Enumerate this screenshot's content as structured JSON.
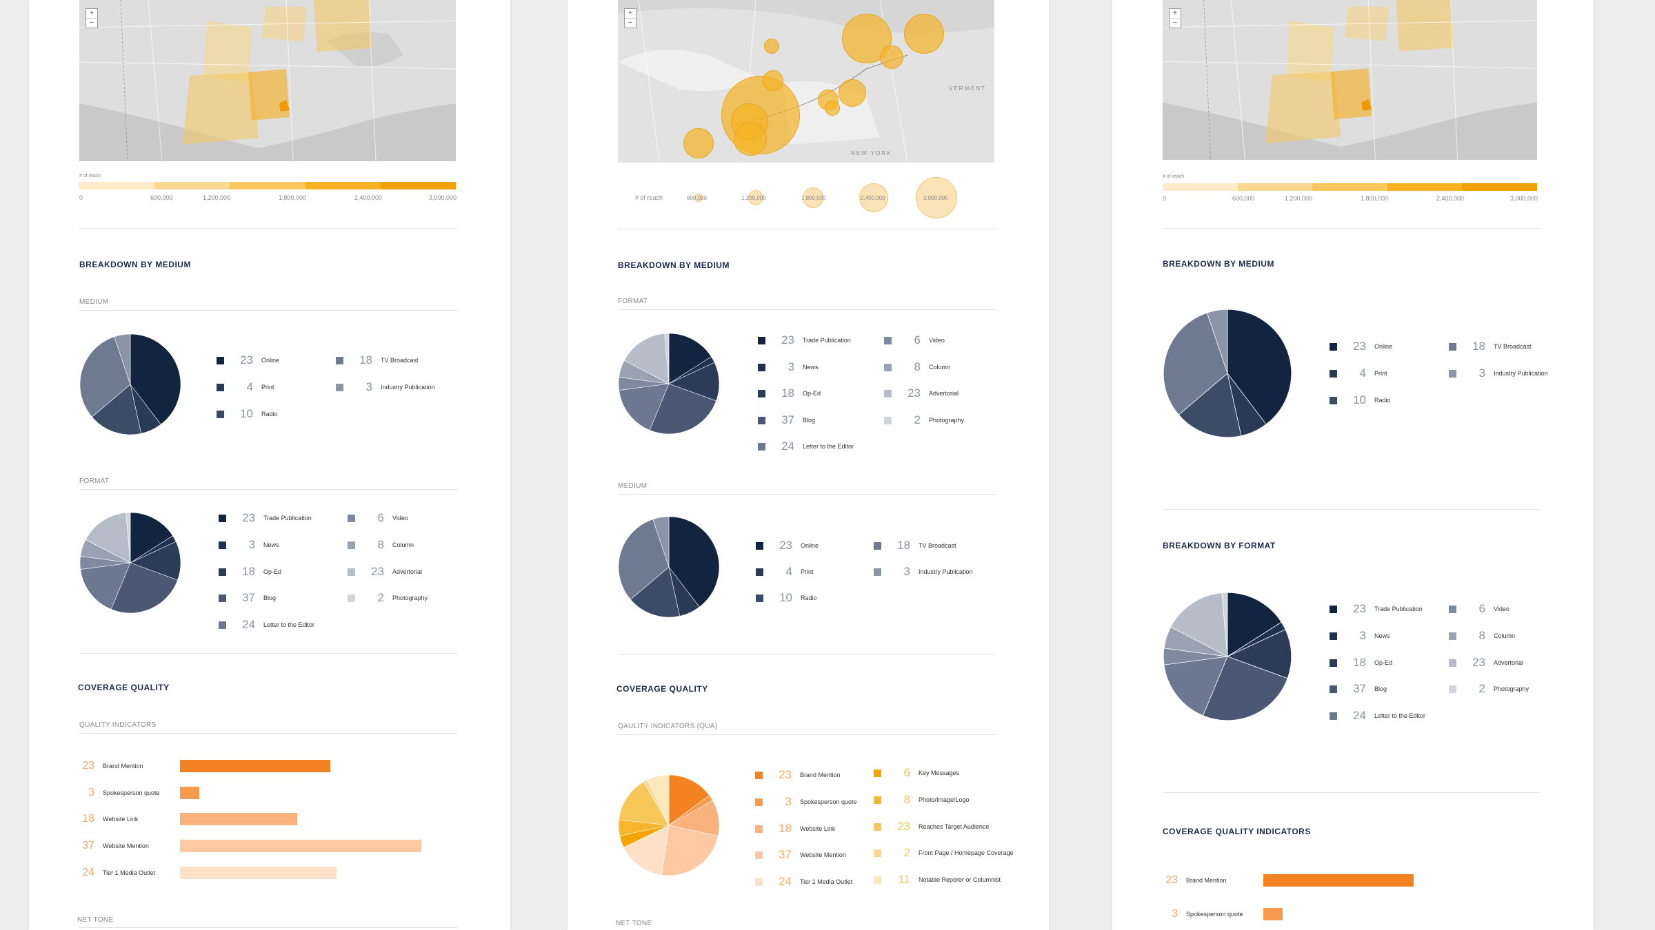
{
  "zoom": {
    "plus": "+",
    "minus": "−"
  },
  "legend_scale": {
    "title": "# of reach",
    "ticks": [
      "0",
      "600,000",
      "1,200,000",
      "1,800,000",
      "2,400,000",
      "3,000,000"
    ],
    "colors": [
      "#fdebc9",
      "#fbd88f",
      "#f8c85d",
      "#f5b324",
      "#f2a100"
    ]
  },
  "bubble_scale": {
    "title": "# of reach",
    "labels": [
      "600,000",
      "1,200,000",
      "1,800,000",
      "2,400,000",
      "3,000,000"
    ]
  },
  "sections": {
    "medium": "BREAKDOWN BY MEDIUM",
    "format": "BREAKDOWN BY FORMAT",
    "quality": "COVERAGE QUALITY",
    "quality_indicators": "COVERAGE QUALITY INDICATORS"
  },
  "subs": {
    "medium": "MEDIUM",
    "format": "FORMAT",
    "quality_indicators": "QUALITY INDICATORS",
    "quality_indicators_qua": "QAULITY INDICATORS (QUA)",
    "net_tone": "NET TONE"
  },
  "medium_items": [
    {
      "num": "23",
      "label": "Online",
      "color": "#12243f"
    },
    {
      "num": "4",
      "label": "Print",
      "color": "#2a3a55"
    },
    {
      "num": "10",
      "label": "Radio",
      "color": "#3d4c66"
    },
    {
      "num": "18",
      "label": "TV Broadcast",
      "color": "#6d7a8f"
    },
    {
      "num": "3",
      "label": "Industry Publication",
      "color": "#8a95a8"
    }
  ],
  "format_items": [
    {
      "num": "23",
      "label": "Trade Publication",
      "color": "#12243f"
    },
    {
      "num": "3",
      "label": "News",
      "color": "#1f3050"
    },
    {
      "num": "18",
      "label": "Op-Ed",
      "color": "#2b3b58"
    },
    {
      "num": "37",
      "label": "Blog",
      "color": "#4a5873"
    },
    {
      "num": "24",
      "label": "Letter to the Editor",
      "color": "#6b7890"
    },
    {
      "num": "6",
      "label": "Video",
      "color": "#7e8aa0"
    },
    {
      "num": "8",
      "label": "Column",
      "color": "#99a2b3"
    },
    {
      "num": "23",
      "label": "Advertorial",
      "color": "#b6bdc9"
    },
    {
      "num": "2",
      "label": "Photography",
      "color": "#d0d4db"
    }
  ],
  "quality_items": [
    {
      "num": "23",
      "label": "Brand Mention",
      "color": "#f58220",
      "value": 23
    },
    {
      "num": "3",
      "label": "Spokesperson quote",
      "color": "#f79a4c",
      "value": 3
    },
    {
      "num": "18",
      "label": "Website Link",
      "color": "#f9b27c",
      "value": 18
    },
    {
      "num": "37",
      "label": "Website Mention",
      "color": "#fcc9a2",
      "value": 37
    },
    {
      "num": "24",
      "label": "Tier 1 Media Outlet",
      "color": "#fde0c8",
      "value": 24
    }
  ],
  "quality_items_right": [
    {
      "num": "6",
      "label": "Key Messages",
      "color": "#f4a500"
    },
    {
      "num": "8",
      "label": "Photo/Image/Logo",
      "color": "#f6b72c"
    },
    {
      "num": "23",
      "label": "Reaches Target Audience",
      "color": "#f8c75a"
    },
    {
      "num": "2",
      "label": "Front Page / Homepage Coverage",
      "color": "#fad98c"
    },
    {
      "num": "11",
      "label": "Notable Reporer or Columnist",
      "color": "#fce8bd"
    }
  ],
  "map_labels": {
    "state": "NEW YORK",
    "vermont": "VERMONT"
  }
}
